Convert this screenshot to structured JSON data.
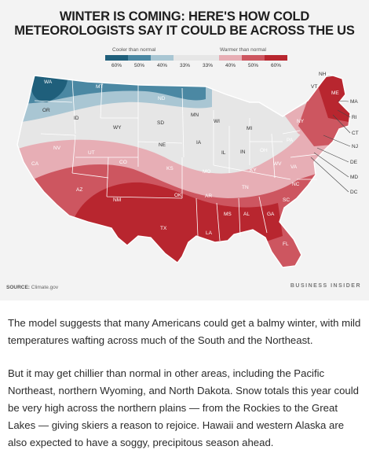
{
  "title_lines": [
    "WINTER IS COMING: HERE'S HOW COLD",
    "METEOROLOGISTS SAY IT COULD BE ACROSS THE US"
  ],
  "legend": {
    "cooler_label": "Cooler than normal",
    "warmer_label": "Warmer than normal",
    "ticks": [
      "60%",
      "50%",
      "40%",
      "33%",
      "33%",
      "40%",
      "50%",
      "60%"
    ],
    "colors": [
      "#1f5f7b",
      "#4b88a3",
      "#a9c6d3",
      "#e6e6e6",
      "#e6e6e6",
      "#e7aeb5",
      "#cd5660",
      "#b8262f"
    ]
  },
  "state_labels": [
    "WA",
    "MT",
    "ND",
    "OR",
    "ID",
    "WY",
    "SD",
    "MN",
    "WI",
    "MI",
    "NV",
    "UT",
    "CO",
    "NE",
    "IA",
    "IL",
    "IN",
    "OH",
    "PA",
    "NY",
    "NH",
    "VT",
    "ME",
    "MA",
    "RI",
    "CT",
    "NJ",
    "DE",
    "MD",
    "DC",
    "WV",
    "VA",
    "KY",
    "MO",
    "KS",
    "CA",
    "AZ",
    "NM",
    "TX",
    "OK",
    "AR",
    "TN",
    "NC",
    "SC",
    "GA",
    "AL",
    "MS",
    "LA",
    "FL"
  ],
  "source_label": "SOURCE:",
  "source_value": "Climate.gov",
  "brand": "BUSINESS INSIDER",
  "paragraphs": [
    "The model suggests that many Americans could get a balmy winter, with mild temperatures wafting across much of the South and the Northeast.",
    "But it may get chillier than normal in other areas, including the Pacific Northeast, northern Wyoming, and North Dakota. Snow totals this year could be very high across the northern plains — from the Rockies to the Great Lakes — giving skiers a reason to rejoice. Hawaii and western Alaska are also expected to have a soggy, precipitous season ahead."
  ]
}
